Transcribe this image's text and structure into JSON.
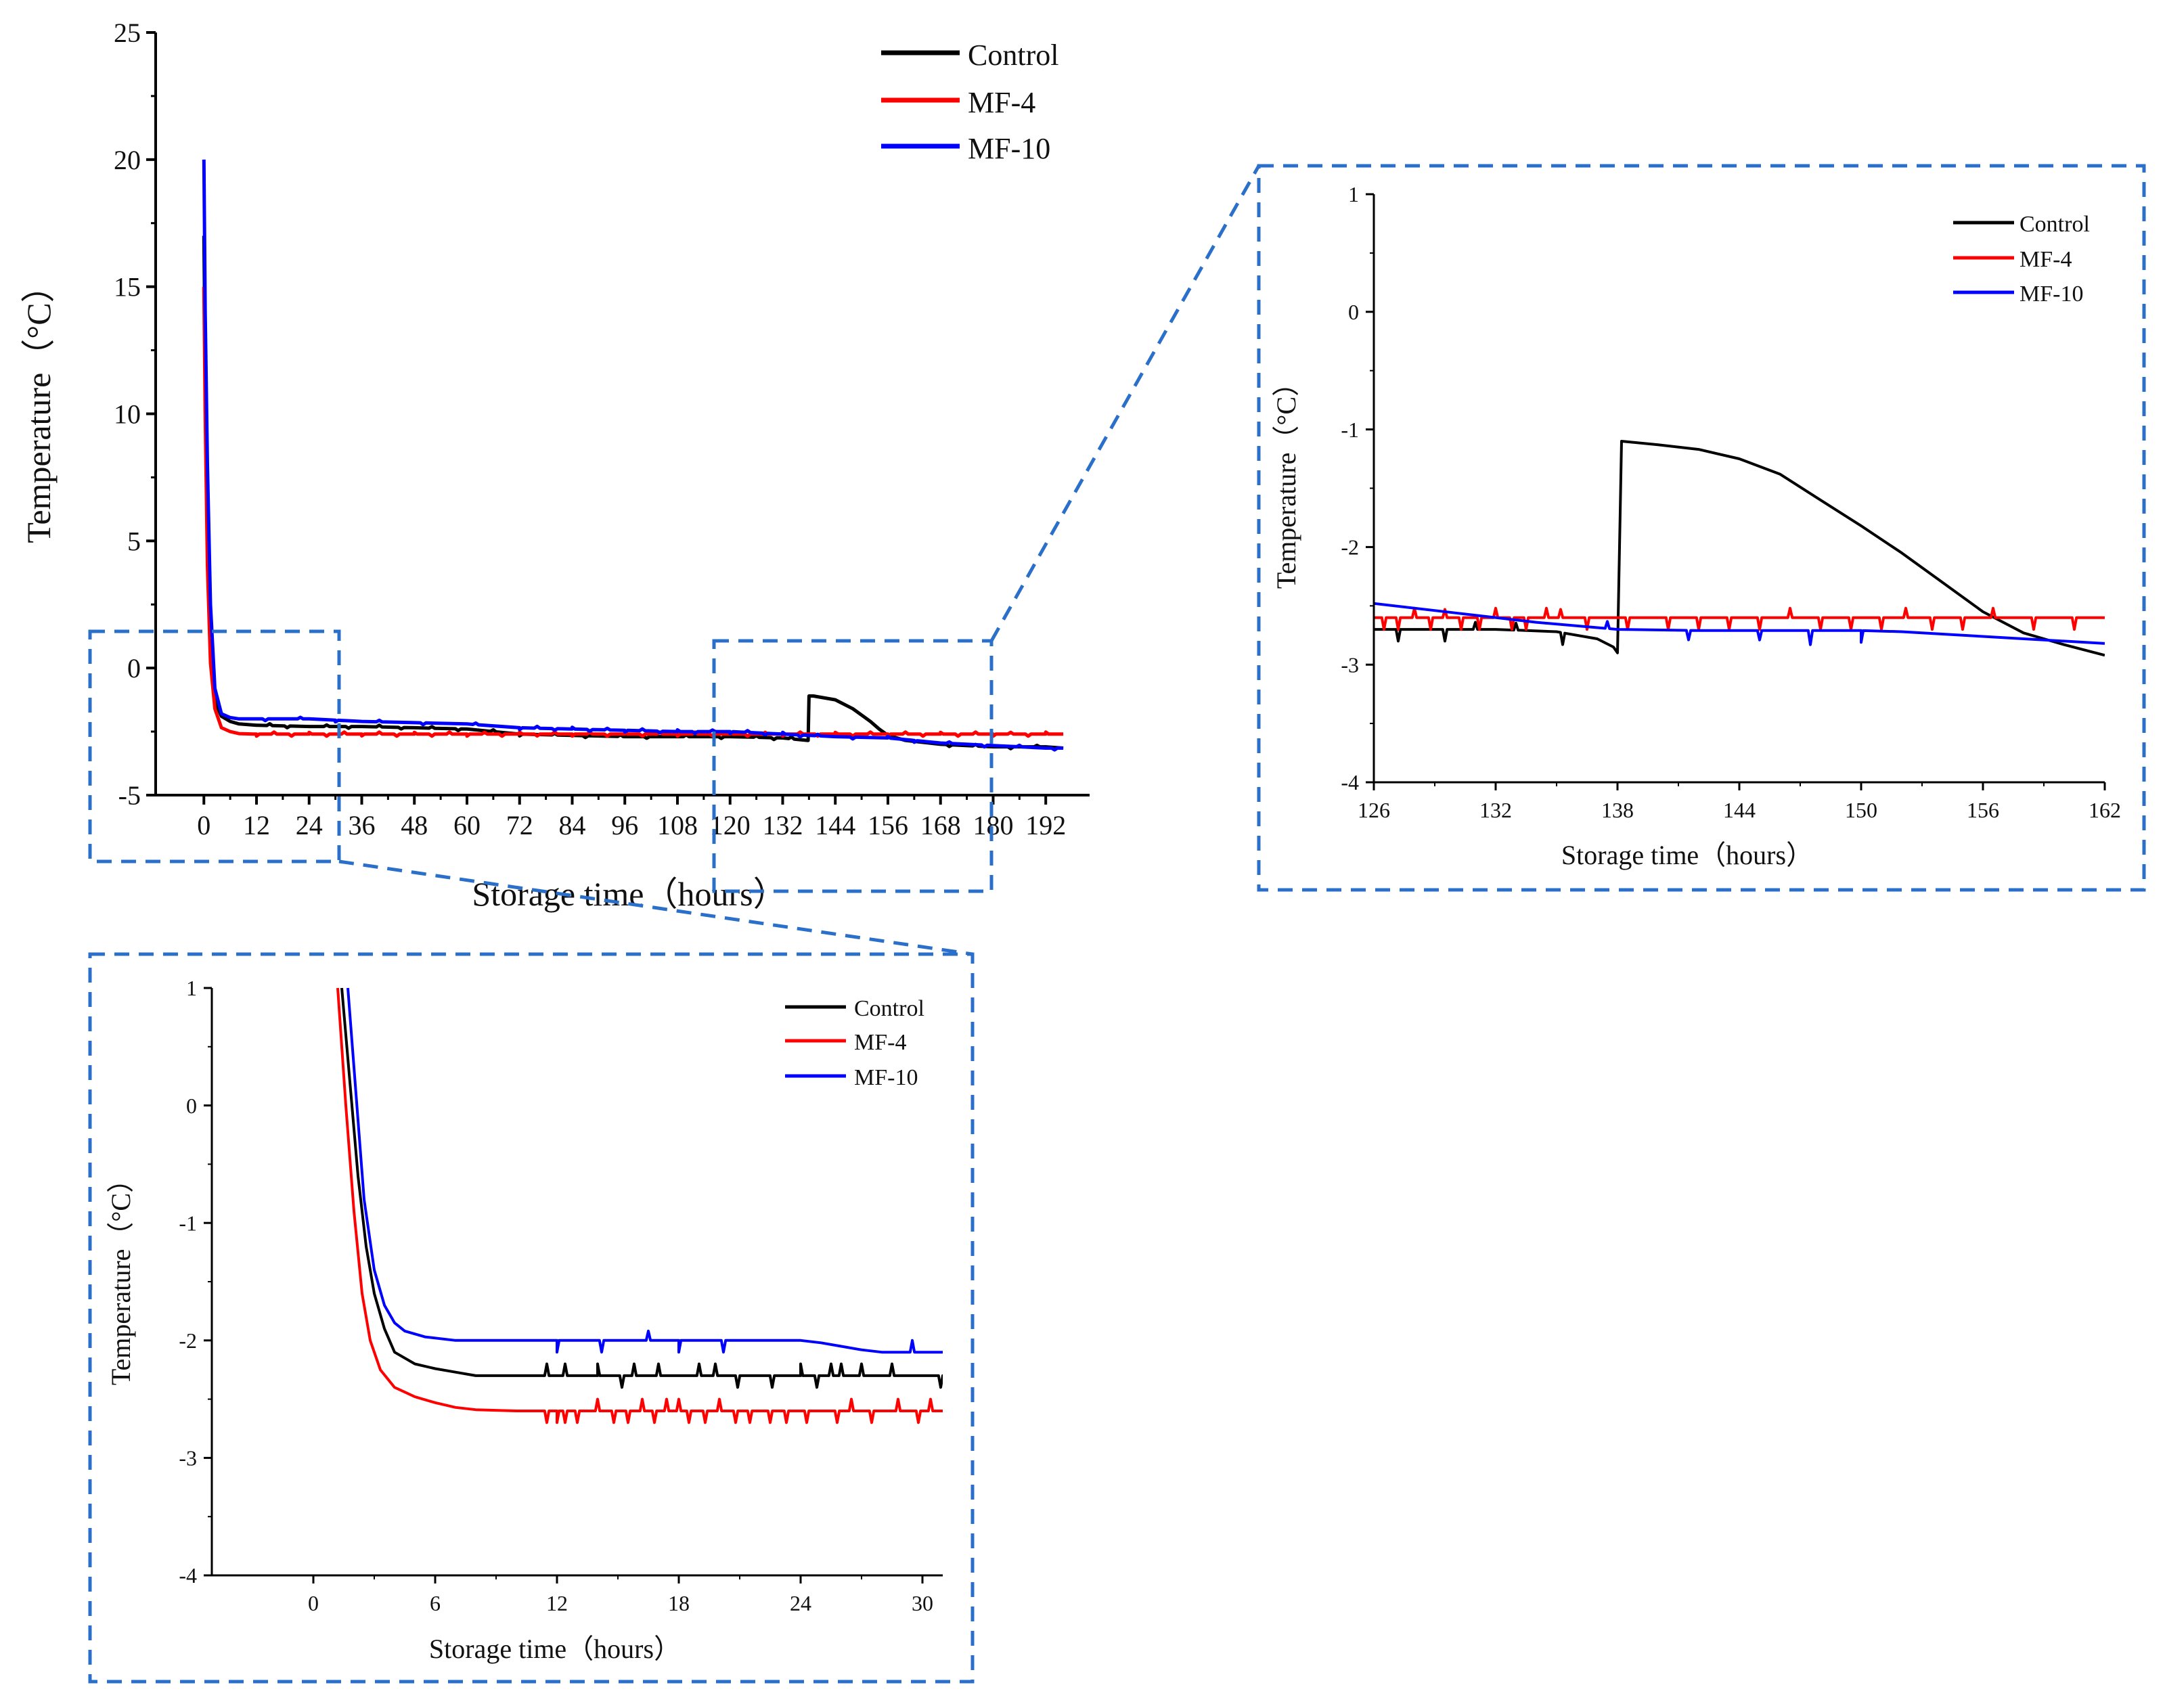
{
  "colors": {
    "control": "#000000",
    "mf4": "#ff0000",
    "mf10": "#0000ff",
    "zoom_box": "#2a6fc9",
    "axis": "#000000"
  },
  "chart_data": [
    {
      "id": "main",
      "type": "line",
      "xlabel": "Storage time（hours）",
      "ylabel": "Temperature（°C）",
      "xlim": [
        -11,
        202
      ],
      "ylim": [
        -5,
        25
      ],
      "xticks": [
        0,
        12,
        24,
        36,
        48,
        60,
        72,
        84,
        96,
        108,
        120,
        132,
        144,
        156,
        168,
        180,
        192
      ],
      "yticks": [
        -5,
        0,
        5,
        10,
        15,
        20,
        25
      ],
      "legend": {
        "position": "top-center",
        "labels": [
          "Control",
          "MF-4",
          "MF-10"
        ]
      },
      "series": [
        {
          "name": "Control",
          "color_key": "control",
          "x": [
            0,
            0.3,
            0.8,
            1.5,
            2.5,
            4,
            6,
            8,
            12,
            24,
            36,
            48,
            60,
            72,
            84,
            96,
            108,
            120,
            132,
            137.8,
            138,
            139,
            144,
            148,
            152,
            154,
            156,
            160,
            168,
            180,
            192,
            196
          ],
          "y": [
            17,
            12,
            6,
            1,
            -1.3,
            -1.9,
            -2.1,
            -2.2,
            -2.25,
            -2.3,
            -2.3,
            -2.35,
            -2.4,
            -2.6,
            -2.65,
            -2.7,
            -2.7,
            -2.7,
            -2.75,
            -2.85,
            -1.1,
            -1.1,
            -1.25,
            -1.6,
            -2.1,
            -2.4,
            -2.65,
            -2.85,
            -3.0,
            -3.1,
            -3.1,
            -3.15
          ],
          "spikes_x": [
            15,
            19,
            28,
            33,
            40,
            45,
            52,
            58,
            66,
            72,
            80,
            87,
            95,
            101,
            110,
            118,
            126,
            130,
            134,
            170,
            176,
            184,
            190
          ],
          "spikes_dy": [
            0.07,
            -0.07,
            0.06,
            -0.07,
            0.07,
            -0.06,
            0.06,
            -0.07,
            0.07,
            -0.07,
            0.06,
            -0.07,
            0.07,
            -0.06,
            0.07,
            -0.07,
            0.06,
            -0.07,
            0.07,
            -0.07,
            0.06,
            -0.07,
            0.06
          ]
        },
        {
          "name": "MF-4",
          "color_key": "mf4",
          "x": [
            0,
            0.3,
            0.8,
            1.5,
            2.5,
            4,
            6,
            8,
            12,
            24,
            36,
            48,
            60,
            72,
            84,
            96,
            108,
            120,
            132,
            144,
            156,
            168,
            180,
            192,
            196
          ],
          "y": [
            15,
            10,
            4,
            0.2,
            -1.6,
            -2.35,
            -2.5,
            -2.58,
            -2.6,
            -2.6,
            -2.6,
            -2.6,
            -2.6,
            -2.6,
            -2.6,
            -2.6,
            -2.6,
            -2.6,
            -2.6,
            -2.6,
            -2.6,
            -2.6,
            -2.6,
            -2.6,
            -2.6
          ],
          "spikes_x": [
            12,
            16,
            20,
            24,
            28,
            32,
            36,
            40,
            44,
            48,
            52,
            56,
            60,
            64,
            68,
            72,
            76,
            80,
            84,
            88,
            92,
            96,
            100,
            104,
            108,
            112,
            116,
            120,
            124,
            128,
            132,
            136,
            140,
            144,
            148,
            152,
            156,
            160,
            164,
            168,
            172,
            176,
            180,
            184,
            188,
            192
          ],
          "spikes_dy": [
            -0.08,
            0.08,
            -0.08,
            0.07,
            -0.08,
            0.08,
            -0.07,
            0.08,
            -0.08,
            0.07,
            -0.08,
            0.08,
            -0.08,
            0.07,
            -0.08,
            0.08,
            -0.07,
            0.08,
            -0.08,
            0.07,
            -0.08,
            0.08,
            -0.08,
            0.07,
            -0.08,
            0.08,
            -0.07,
            0.08,
            -0.08,
            0.07,
            -0.08,
            0.08,
            -0.08,
            0.07,
            -0.08,
            0.08,
            -0.07,
            0.08,
            -0.08,
            0.07,
            -0.08,
            0.08,
            -0.08,
            0.07,
            -0.08,
            0.08
          ]
        },
        {
          "name": "MF-10",
          "color_key": "mf10",
          "x": [
            0,
            0.3,
            0.8,
            1.5,
            2.5,
            4,
            6,
            8,
            12,
            18,
            24,
            30,
            36,
            48,
            60,
            72,
            84,
            96,
            108,
            120,
            132,
            144,
            156,
            162,
            168,
            180,
            192,
            196
          ],
          "y": [
            20,
            14,
            8,
            2.5,
            -0.8,
            -1.8,
            -1.95,
            -2.0,
            -2.0,
            -2.0,
            -2.0,
            -2.05,
            -2.1,
            -2.15,
            -2.2,
            -2.35,
            -2.4,
            -2.45,
            -2.5,
            -2.5,
            -2.6,
            -2.7,
            -2.75,
            -2.85,
            -2.95,
            -3.05,
            -3.15,
            -3.15
          ],
          "spikes_x": [
            14,
            22,
            30,
            40,
            50,
            62,
            72,
            76,
            80,
            84,
            88,
            92,
            96,
            100,
            104,
            108,
            112,
            116,
            120,
            124,
            128,
            132,
            136,
            140,
            148,
            156,
            162,
            170,
            178,
            186,
            194
          ],
          "spikes_dy": [
            -0.07,
            0.06,
            -0.07,
            0.06,
            -0.07,
            0.06,
            -0.07,
            0.07,
            -0.06,
            0.07,
            -0.07,
            0.06,
            -0.07,
            0.07,
            -0.06,
            0.07,
            -0.07,
            0.06,
            -0.07,
            0.07,
            -0.06,
            0.07,
            -0.07,
            0.06,
            -0.07,
            0.06,
            -0.07,
            0.06,
            -0.07,
            0.06,
            -0.07
          ]
        }
      ]
    },
    {
      "id": "zoom_right",
      "type": "line",
      "xlabel": "Storage time（hours）",
      "ylabel": "Temperature（°C）",
      "xlim": [
        126,
        162
      ],
      "ylim": [
        -4,
        1
      ],
      "xticks": [
        126,
        132,
        138,
        144,
        150,
        156,
        162
      ],
      "yticks": [
        -4,
        -3,
        -2,
        -1,
        0,
        1
      ],
      "legend": {
        "position": "top-right",
        "labels": [
          "Control",
          "MF-4",
          "MF-10"
        ]
      },
      "series": [
        {
          "name": "Control",
          "color_key": "control",
          "x": [
            126,
            132,
            135,
            137,
            137.8,
            138,
            138.2,
            140,
            142,
            144,
            146,
            148,
            150,
            152,
            154,
            156,
            158,
            160,
            162
          ],
          "y": [
            -2.7,
            -2.7,
            -2.72,
            -2.78,
            -2.85,
            -2.9,
            -1.1,
            -1.13,
            -1.17,
            -1.25,
            -1.38,
            -1.6,
            -1.82,
            -2.05,
            -2.3,
            -2.55,
            -2.73,
            -2.83,
            -2.92
          ],
          "spikes_x": [
            127.2,
            129.5,
            131,
            133,
            135.3
          ],
          "spikes_dy": [
            -0.1,
            -0.1,
            0.06,
            0.06,
            -0.1
          ]
        },
        {
          "name": "MF-4",
          "color_key": "mf4",
          "x": [
            126,
            162
          ],
          "y": [
            -2.6,
            -2.6
          ],
          "spikes_x": [
            126.5,
            127.2,
            128,
            128.8,
            129.5,
            130.3,
            131.2,
            132,
            132.8,
            133.5,
            134.5,
            135.2,
            136.5,
            138.5,
            140.5,
            142,
            143.5,
            145,
            146.5,
            148,
            149.5,
            151,
            152.2,
            153.5,
            155,
            156.5,
            158.5,
            160.5
          ],
          "spikes_dy": [
            -0.1,
            -0.1,
            0.08,
            -0.1,
            0.07,
            -0.1,
            -0.1,
            0.08,
            -0.1,
            -0.1,
            0.08,
            0.07,
            -0.1,
            -0.1,
            -0.1,
            -0.1,
            -0.1,
            -0.1,
            0.08,
            -0.1,
            -0.1,
            -0.1,
            0.08,
            -0.1,
            -0.1,
            0.08,
            -0.1,
            -0.1
          ]
        },
        {
          "name": "MF-10",
          "color_key": "mf10",
          "x": [
            126,
            130,
            134,
            138,
            142,
            146,
            150,
            152,
            154,
            156,
            158,
            160,
            162
          ],
          "y": [
            -2.48,
            -2.56,
            -2.64,
            -2.7,
            -2.71,
            -2.71,
            -2.71,
            -2.72,
            -2.74,
            -2.76,
            -2.78,
            -2.8,
            -2.82
          ],
          "spikes_x": [
            137.5,
            141.5,
            145,
            147.5,
            150
          ],
          "spikes_dy": [
            0.06,
            -0.08,
            -0.08,
            -0.12,
            -0.1
          ]
        }
      ]
    },
    {
      "id": "zoom_bottom",
      "type": "line",
      "xlabel": "Storage time（hours）",
      "ylabel": "Temperature（°C）",
      "xlim": [
        -5,
        31
      ],
      "ylim": [
        -4,
        1
      ],
      "xticks": [
        0,
        6,
        12,
        18,
        24,
        30
      ],
      "yticks": [
        -4,
        -3,
        -2,
        -1,
        0,
        1
      ],
      "legend": {
        "position": "top-right",
        "labels": [
          "Control",
          "MF-4",
          "MF-10"
        ]
      },
      "series": [
        {
          "name": "Control",
          "color_key": "control",
          "x": [
            1.4,
            1.8,
            2.2,
            2.6,
            3,
            3.5,
            4,
            5,
            6,
            7,
            8,
            10,
            12,
            14,
            18,
            24,
            28,
            31
          ],
          "y": [
            1,
            0.2,
            -0.6,
            -1.2,
            -1.6,
            -1.9,
            -2.1,
            -2.2,
            -2.24,
            -2.27,
            -2.3,
            -2.3,
            -2.3,
            -2.3,
            -2.3,
            -2.3,
            -2.3,
            -2.3
          ],
          "spikes_x": [
            11.5,
            12.4,
            14,
            15.2,
            15.8,
            17,
            19,
            19.8,
            20.9,
            22.6,
            24,
            24.8,
            25.5,
            26,
            27,
            28.5,
            30.9
          ],
          "spikes_dy": [
            0.1,
            0.1,
            0.1,
            -0.1,
            0.1,
            0.1,
            0.1,
            0.1,
            -0.1,
            -0.1,
            0.1,
            -0.1,
            0.1,
            0.1,
            0.1,
            0.1,
            -0.1
          ]
        },
        {
          "name": "MF-4",
          "color_key": "mf4",
          "x": [
            1.2,
            1.6,
            2,
            2.4,
            2.8,
            3.3,
            4,
            5,
            6,
            7,
            8,
            10,
            12,
            31
          ],
          "y": [
            1,
            0,
            -0.9,
            -1.6,
            -2.0,
            -2.25,
            -2.4,
            -2.48,
            -2.53,
            -2.57,
            -2.59,
            -2.6,
            -2.6,
            -2.6
          ],
          "spikes_x": [
            11.5,
            12,
            12.4,
            13,
            14,
            14.8,
            15.5,
            16.2,
            16.8,
            17.4,
            18,
            18.5,
            19.3,
            20,
            20.8,
            21.5,
            22.5,
            23.3,
            24.3,
            25.8,
            26.5,
            27.5,
            28.8,
            29.8,
            30.4
          ],
          "spikes_dy": [
            -0.1,
            -0.1,
            -0.1,
            -0.1,
            0.1,
            -0.1,
            -0.1,
            0.1,
            -0.1,
            0.1,
            0.1,
            -0.1,
            -0.1,
            0.1,
            -0.1,
            -0.1,
            -0.1,
            -0.1,
            -0.1,
            -0.1,
            0.1,
            -0.1,
            0.1,
            -0.1,
            0.1
          ]
        },
        {
          "name": "MF-10",
          "color_key": "mf10",
          "x": [
            1.7,
            2.1,
            2.5,
            3,
            3.5,
            4,
            4.5,
            5.5,
            7,
            9,
            12,
            18,
            24,
            25,
            26,
            27,
            28,
            31
          ],
          "y": [
            1,
            0.1,
            -0.8,
            -1.4,
            -1.7,
            -1.85,
            -1.92,
            -1.97,
            -2.0,
            -2.0,
            -2.0,
            -2.0,
            -2.0,
            -2.02,
            -2.05,
            -2.08,
            -2.1,
            -2.1
          ],
          "spikes_x": [
            12,
            14.2,
            16.5,
            18,
            20.2,
            29.5
          ],
          "spikes_dy": [
            -0.1,
            -0.1,
            0.08,
            -0.1,
            -0.1,
            0.1
          ]
        }
      ]
    }
  ]
}
